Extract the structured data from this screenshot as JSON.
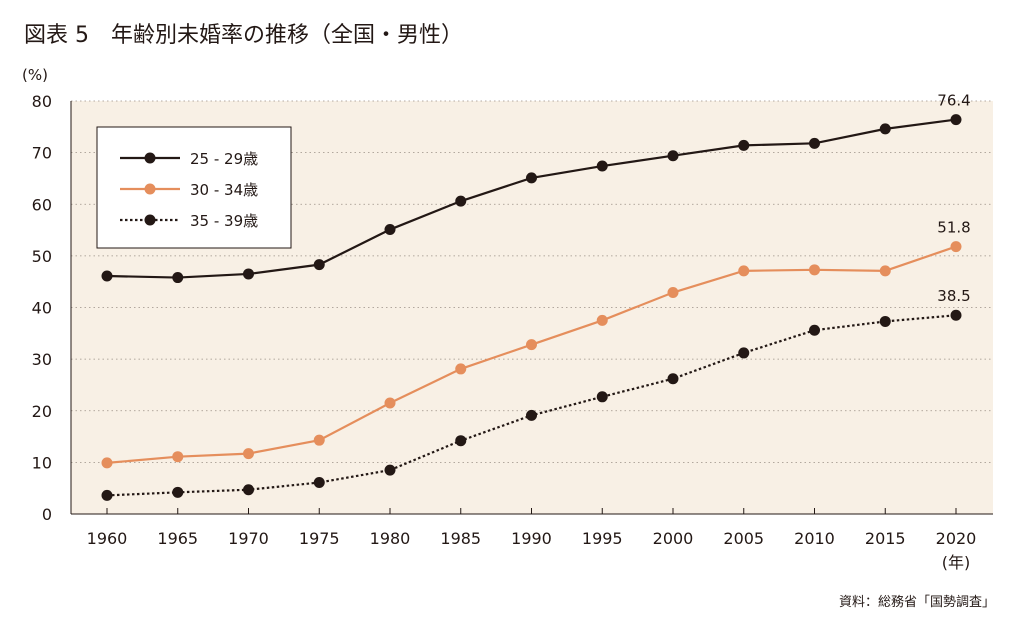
{
  "chart_data": {
    "type": "line",
    "title": "図表 5　年齢別未婚率の推移（全国・男性）",
    "ylabel": "(%)",
    "xlabel": "(年)",
    "ylim": [
      0,
      80
    ],
    "yticks": [
      0,
      10,
      20,
      30,
      40,
      50,
      60,
      70,
      80
    ],
    "categories": [
      "1960",
      "1965",
      "1970",
      "1975",
      "1980",
      "1985",
      "1990",
      "1995",
      "2000",
      "2005",
      "2010",
      "2015",
      "2020"
    ],
    "grid": "horizontal-dotted",
    "legend_position": "top-left",
    "series": [
      {
        "name": "25 - 29歳",
        "color": "#231815",
        "style": "solid",
        "values": [
          46.1,
          45.8,
          46.5,
          48.3,
          55.1,
          60.6,
          65.1,
          67.4,
          69.4,
          71.4,
          71.8,
          74.6,
          76.4
        ],
        "end_label": "76.4"
      },
      {
        "name": "30 - 34歳",
        "color": "#E58E5C",
        "style": "solid",
        "values": [
          9.9,
          11.1,
          11.7,
          14.3,
          21.5,
          28.1,
          32.8,
          37.5,
          42.9,
          47.1,
          47.3,
          47.1,
          51.8
        ],
        "end_label": "51.8"
      },
      {
        "name": "35 - 39歳",
        "color": "#231815",
        "style": "dotted",
        "values": [
          3.6,
          4.2,
          4.7,
          6.1,
          8.5,
          14.2,
          19.1,
          22.7,
          26.2,
          31.2,
          35.6,
          37.3,
          38.5
        ],
        "end_label": "38.5"
      }
    ],
    "source": "資料：総務省「国勢調査」",
    "plot_background": "#F8F0E5"
  }
}
